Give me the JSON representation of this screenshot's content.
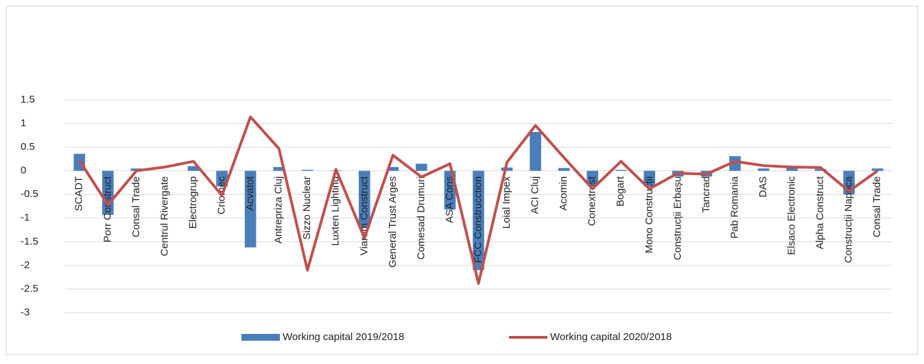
{
  "chart_data": {
    "type": "bar-line",
    "categories": [
      "SCADT",
      "Porr Construct",
      "Consal Trade",
      "Centrul Rivergate",
      "Electrogrup",
      "Criomec",
      "Acvatot",
      "Antrepriza Cluj",
      "Sizzo Nuclear",
      "Luxten Lighting",
      "Viarom Construct",
      "General Trust Arges",
      "Comesad Drumuri",
      "ASA Cons",
      "FCC Construcction",
      "Loial Impex",
      "ACI Cluj",
      "Acomin",
      "Conextrust",
      "Bogart",
      "Mono Construcții",
      "Construcții Erbașu",
      "Tancrad",
      "Pab Romania",
      "DAS",
      "Elsaco Electronic",
      "Alpha Construct",
      "Construcții Napoca",
      "Consal Trade"
    ],
    "series": [
      {
        "name": "Working capital  2019/2018",
        "kind": "bar",
        "color": "#4a7ebb",
        "values": [
          0.36,
          -0.93,
          0.05,
          0.0,
          0.1,
          -0.33,
          -1.62,
          0.08,
          0.02,
          0.01,
          -1.2,
          0.08,
          0.15,
          -0.82,
          -2.1,
          0.07,
          0.82,
          0.06,
          -0.3,
          0.02,
          -0.33,
          -0.12,
          -0.12,
          0.31,
          0.05,
          0.06,
          0.04,
          -0.5,
          0.05
        ]
      },
      {
        "name": "Working capital  2020/2018",
        "kind": "line",
        "color": "#c0504d",
        "values": [
          0.22,
          -0.72,
          0.0,
          0.08,
          0.2,
          -0.52,
          1.14,
          0.47,
          -2.1,
          0.03,
          -1.42,
          0.33,
          -0.13,
          0.15,
          -2.38,
          0.18,
          0.96,
          0.28,
          -0.38,
          0.2,
          -0.38,
          -0.05,
          -0.07,
          0.2,
          0.11,
          0.08,
          0.07,
          -0.43,
          0.0
        ]
      }
    ],
    "ylim": [
      -3,
      1.5
    ],
    "yticks": [
      1.5,
      1,
      0.5,
      0,
      -0.5,
      -1,
      -1.5,
      -2,
      -2.5,
      -3
    ],
    "grid": true,
    "legend": "bottom"
  }
}
